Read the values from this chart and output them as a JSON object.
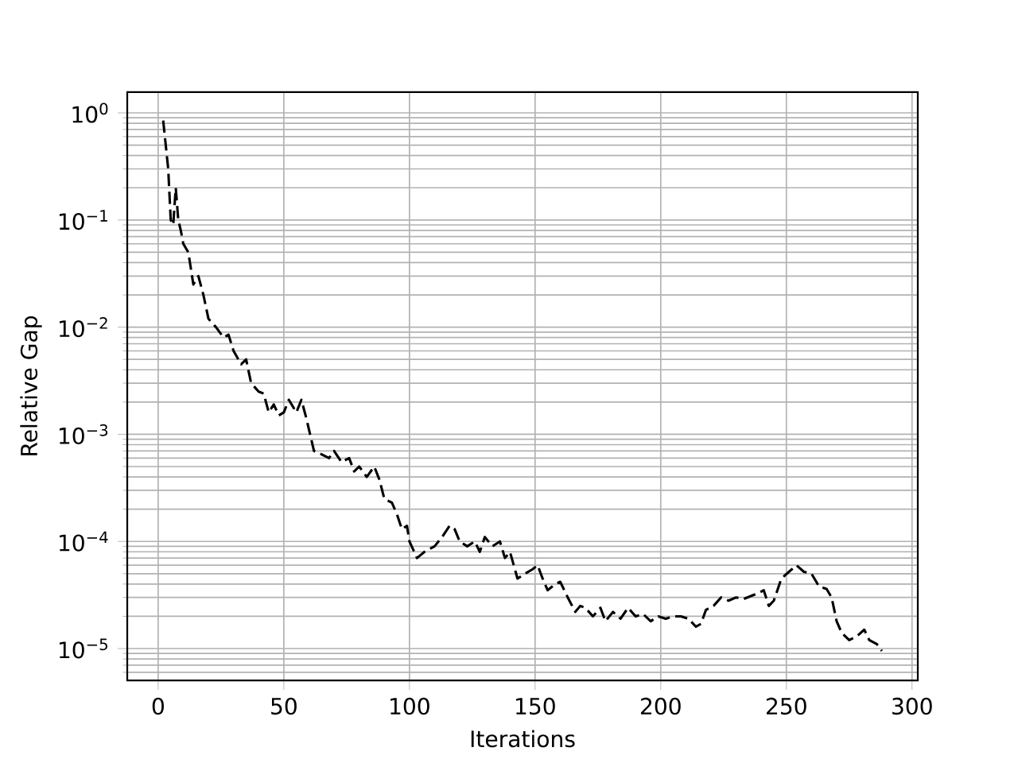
{
  "chart_data": {
    "type": "line",
    "xlabel": "Iterations",
    "ylabel": "Relative Gap",
    "log": "y",
    "grid": true,
    "line_style": "dashed",
    "marker": "none",
    "xlim": [
      -12.3,
      302.3
    ],
    "ylim": [
      5.05e-06,
      1.56
    ],
    "xticks": [
      0,
      50,
      100,
      150,
      200,
      250,
      300
    ],
    "yticks": [
      {
        "value": 1e-05,
        "label": "10$^{−5}$"
      },
      {
        "value": 0.0001,
        "label": "10$^{−4}$"
      },
      {
        "value": 0.001,
        "label": "10$^{−3}$"
      },
      {
        "value": 0.01,
        "label": "10$^{−2}$"
      },
      {
        "value": 0.1,
        "label": "10$^{−1}$"
      },
      {
        "value": 1,
        "label": "10$^{0}$"
      }
    ],
    "series": [
      {
        "color": "#000000",
        "x": [
          2,
          4,
          5,
          6,
          7,
          8,
          9,
          10,
          12,
          14,
          16,
          18,
          20,
          23,
          26,
          28,
          30,
          33,
          35,
          37,
          40,
          42,
          44,
          46,
          48,
          50,
          52,
          55,
          57,
          59,
          62,
          65,
          68,
          70,
          73,
          76,
          78,
          80,
          83,
          86,
          88,
          90,
          93,
          95,
          97,
          99,
          100,
          103,
          106,
          110,
          113,
          116,
          118,
          120,
          123,
          126,
          128,
          130,
          133,
          136,
          138,
          140,
          143,
          146,
          149,
          151,
          153,
          155,
          158,
          160,
          163,
          166,
          168,
          170,
          173,
          176,
          178,
          181,
          184,
          187,
          190,
          193,
          196,
          199,
          202,
          205,
          208,
          211,
          214,
          216,
          218,
          221,
          224,
          227,
          230,
          233,
          236,
          239,
          241,
          243,
          245,
          248,
          251,
          254,
          257,
          260,
          263,
          266,
          268,
          270,
          272,
          275,
          278,
          281,
          283,
          286,
          288
        ],
        "values": [
          0.85,
          0.3,
          0.1,
          0.09,
          0.2,
          0.1,
          0.08,
          0.06,
          0.05,
          0.025,
          0.03,
          0.02,
          0.012,
          0.01,
          0.008,
          0.0085,
          0.006,
          0.0045,
          0.005,
          0.003,
          0.0025,
          0.0024,
          0.0016,
          0.0019,
          0.0015,
          0.0016,
          0.0021,
          0.0016,
          0.0021,
          0.0014,
          0.0007,
          0.00065,
          0.0006,
          0.0007,
          0.00055,
          0.0006,
          0.00045,
          0.0005,
          0.0004,
          0.0005,
          0.00038,
          0.00025,
          0.00023,
          0.00018,
          0.00013,
          0.00014,
          0.0001,
          7e-05,
          8e-05,
          9e-05,
          0.00011,
          0.00014,
          0.00013,
          0.0001,
          9e-05,
          0.0001,
          8e-05,
          0.00011,
          9e-05,
          0.0001,
          7e-05,
          8e-05,
          4.5e-05,
          5e-05,
          5.5e-05,
          6e-05,
          4.5e-05,
          3.5e-05,
          4e-05,
          4.2e-05,
          3e-05,
          2.2e-05,
          2.5e-05,
          2.4e-05,
          2e-05,
          2.4e-05,
          1.8e-05,
          2.2e-05,
          1.9e-05,
          2.4e-05,
          2e-05,
          2.1e-05,
          1.8e-05,
          2e-05,
          1.9e-05,
          2e-05,
          2e-05,
          1.9e-05,
          1.6e-05,
          1.7e-05,
          2.3e-05,
          2.5e-05,
          3e-05,
          2.8e-05,
          3e-05,
          2.9e-05,
          3.1e-05,
          3.3e-05,
          3.5e-05,
          2.5e-05,
          2.8e-05,
          4.5e-05,
          5.2e-05,
          6e-05,
          5.2e-05,
          5e-05,
          3.8e-05,
          3.6e-05,
          3e-05,
          1.8e-05,
          1.4e-05,
          1.2e-05,
          1.3e-05,
          1.5e-05,
          1.2e-05,
          1.1e-05,
          9.5e-06
        ]
      }
    ]
  }
}
